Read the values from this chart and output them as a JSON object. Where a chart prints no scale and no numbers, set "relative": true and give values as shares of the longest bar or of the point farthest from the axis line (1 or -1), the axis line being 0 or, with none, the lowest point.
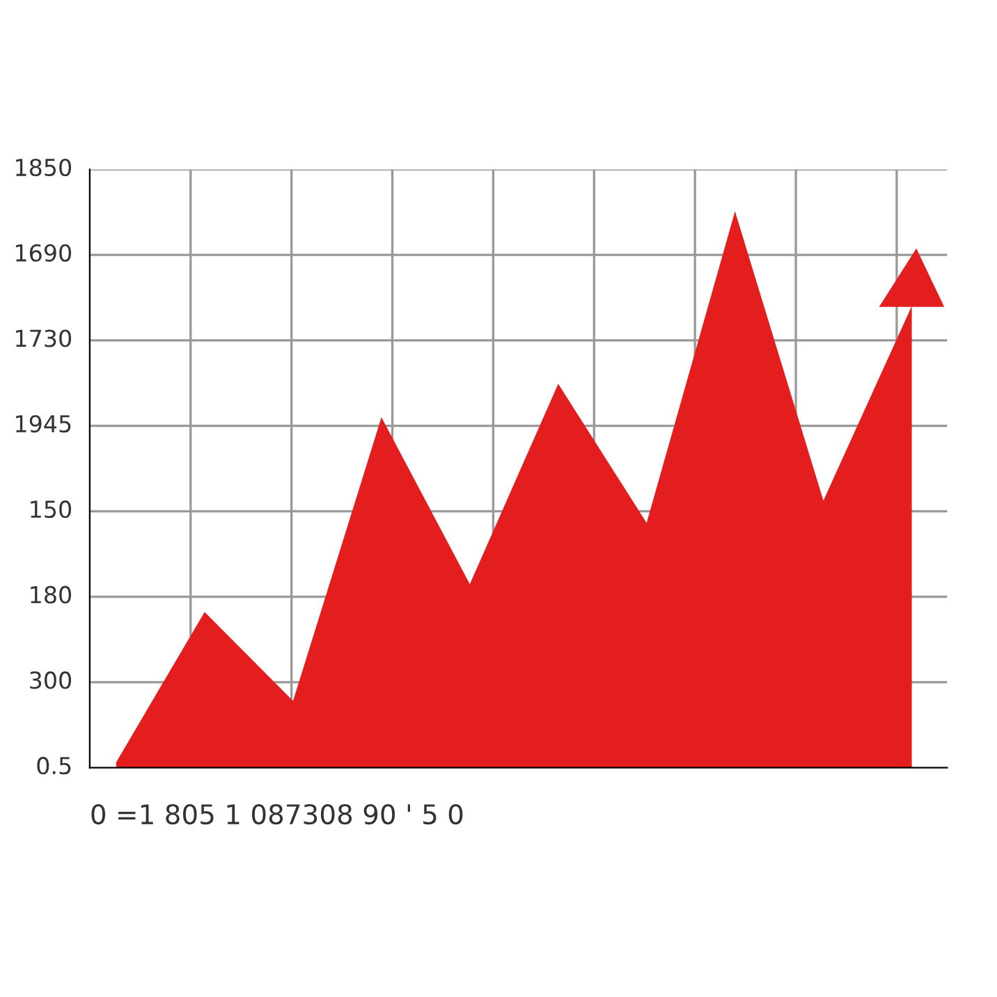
{
  "chart_data": {
    "type": "area",
    "relative": true,
    "grid": true,
    "categories": [
      null,
      null,
      null,
      null,
      null,
      null,
      null,
      null,
      null,
      null
    ],
    "series": [
      {
        "color": "#e41e1e",
        "values": [
          0.01,
          0.28,
          0.12,
          0.63,
          0.33,
          0.69,
          0.44,
          1.0,
          0.48,
          0.83
        ]
      }
    ],
    "annotations": [
      "0.5",
      "300",
      "180",
      "150",
      "1945",
      "1730",
      "1690",
      "1850",
      "0 =1 805 1 087308 90 ' 5 0"
    ]
  }
}
